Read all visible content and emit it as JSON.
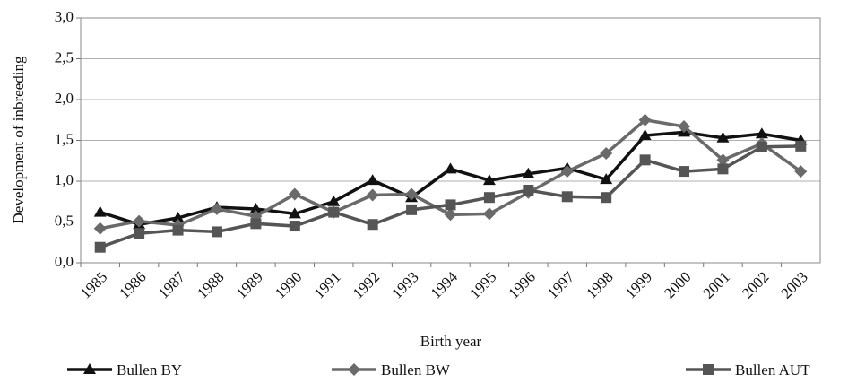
{
  "chart_data": {
    "type": "line",
    "y_label": "Development of inbreeding",
    "x_label": "Birth year",
    "categories": [
      "1985",
      "1986",
      "1987",
      "1988",
      "1989",
      "1990",
      "1991",
      "1992",
      "1993",
      "1994",
      "1995",
      "1996",
      "1997",
      "1998",
      "1999",
      "2000",
      "2001",
      "2002",
      "2003"
    ],
    "series": [
      {
        "name": "Bullen BY",
        "color": "#111111",
        "marker": "triangle",
        "values": [
          0.62,
          0.47,
          0.55,
          0.68,
          0.66,
          0.6,
          0.75,
          1.01,
          0.8,
          1.15,
          1.01,
          1.09,
          1.16,
          1.02,
          1.56,
          1.6,
          1.53,
          1.58,
          1.5
        ]
      },
      {
        "name": "Bullen BW",
        "color": "#6a6a6a",
        "marker": "diamond",
        "values": [
          0.42,
          0.51,
          0.46,
          0.66,
          0.57,
          0.84,
          0.62,
          0.83,
          0.84,
          0.59,
          0.6,
          0.86,
          1.12,
          1.34,
          1.75,
          1.67,
          1.26,
          1.46,
          1.12
        ]
      },
      {
        "name": "Bullen AUT",
        "color": "#555555",
        "marker": "square",
        "values": [
          0.19,
          0.36,
          0.4,
          0.38,
          0.48,
          0.45,
          0.62,
          0.47,
          0.65,
          0.71,
          0.8,
          0.89,
          0.81,
          0.8,
          1.26,
          1.12,
          1.15,
          1.42,
          1.43
        ]
      }
    ],
    "ylim": [
      0,
      3
    ],
    "yticks": [
      {
        "value": 0,
        "label": "0,0"
      },
      {
        "value": 0.5,
        "label": "0,5"
      },
      {
        "value": 1,
        "label": "1,0"
      },
      {
        "value": 1.5,
        "label": "1,5"
      },
      {
        "value": 2,
        "label": "2,0"
      },
      {
        "value": 2.5,
        "label": "2,5"
      },
      {
        "value": 3,
        "label": "3,0"
      }
    ],
    "grid": true,
    "legend": "bottom"
  }
}
